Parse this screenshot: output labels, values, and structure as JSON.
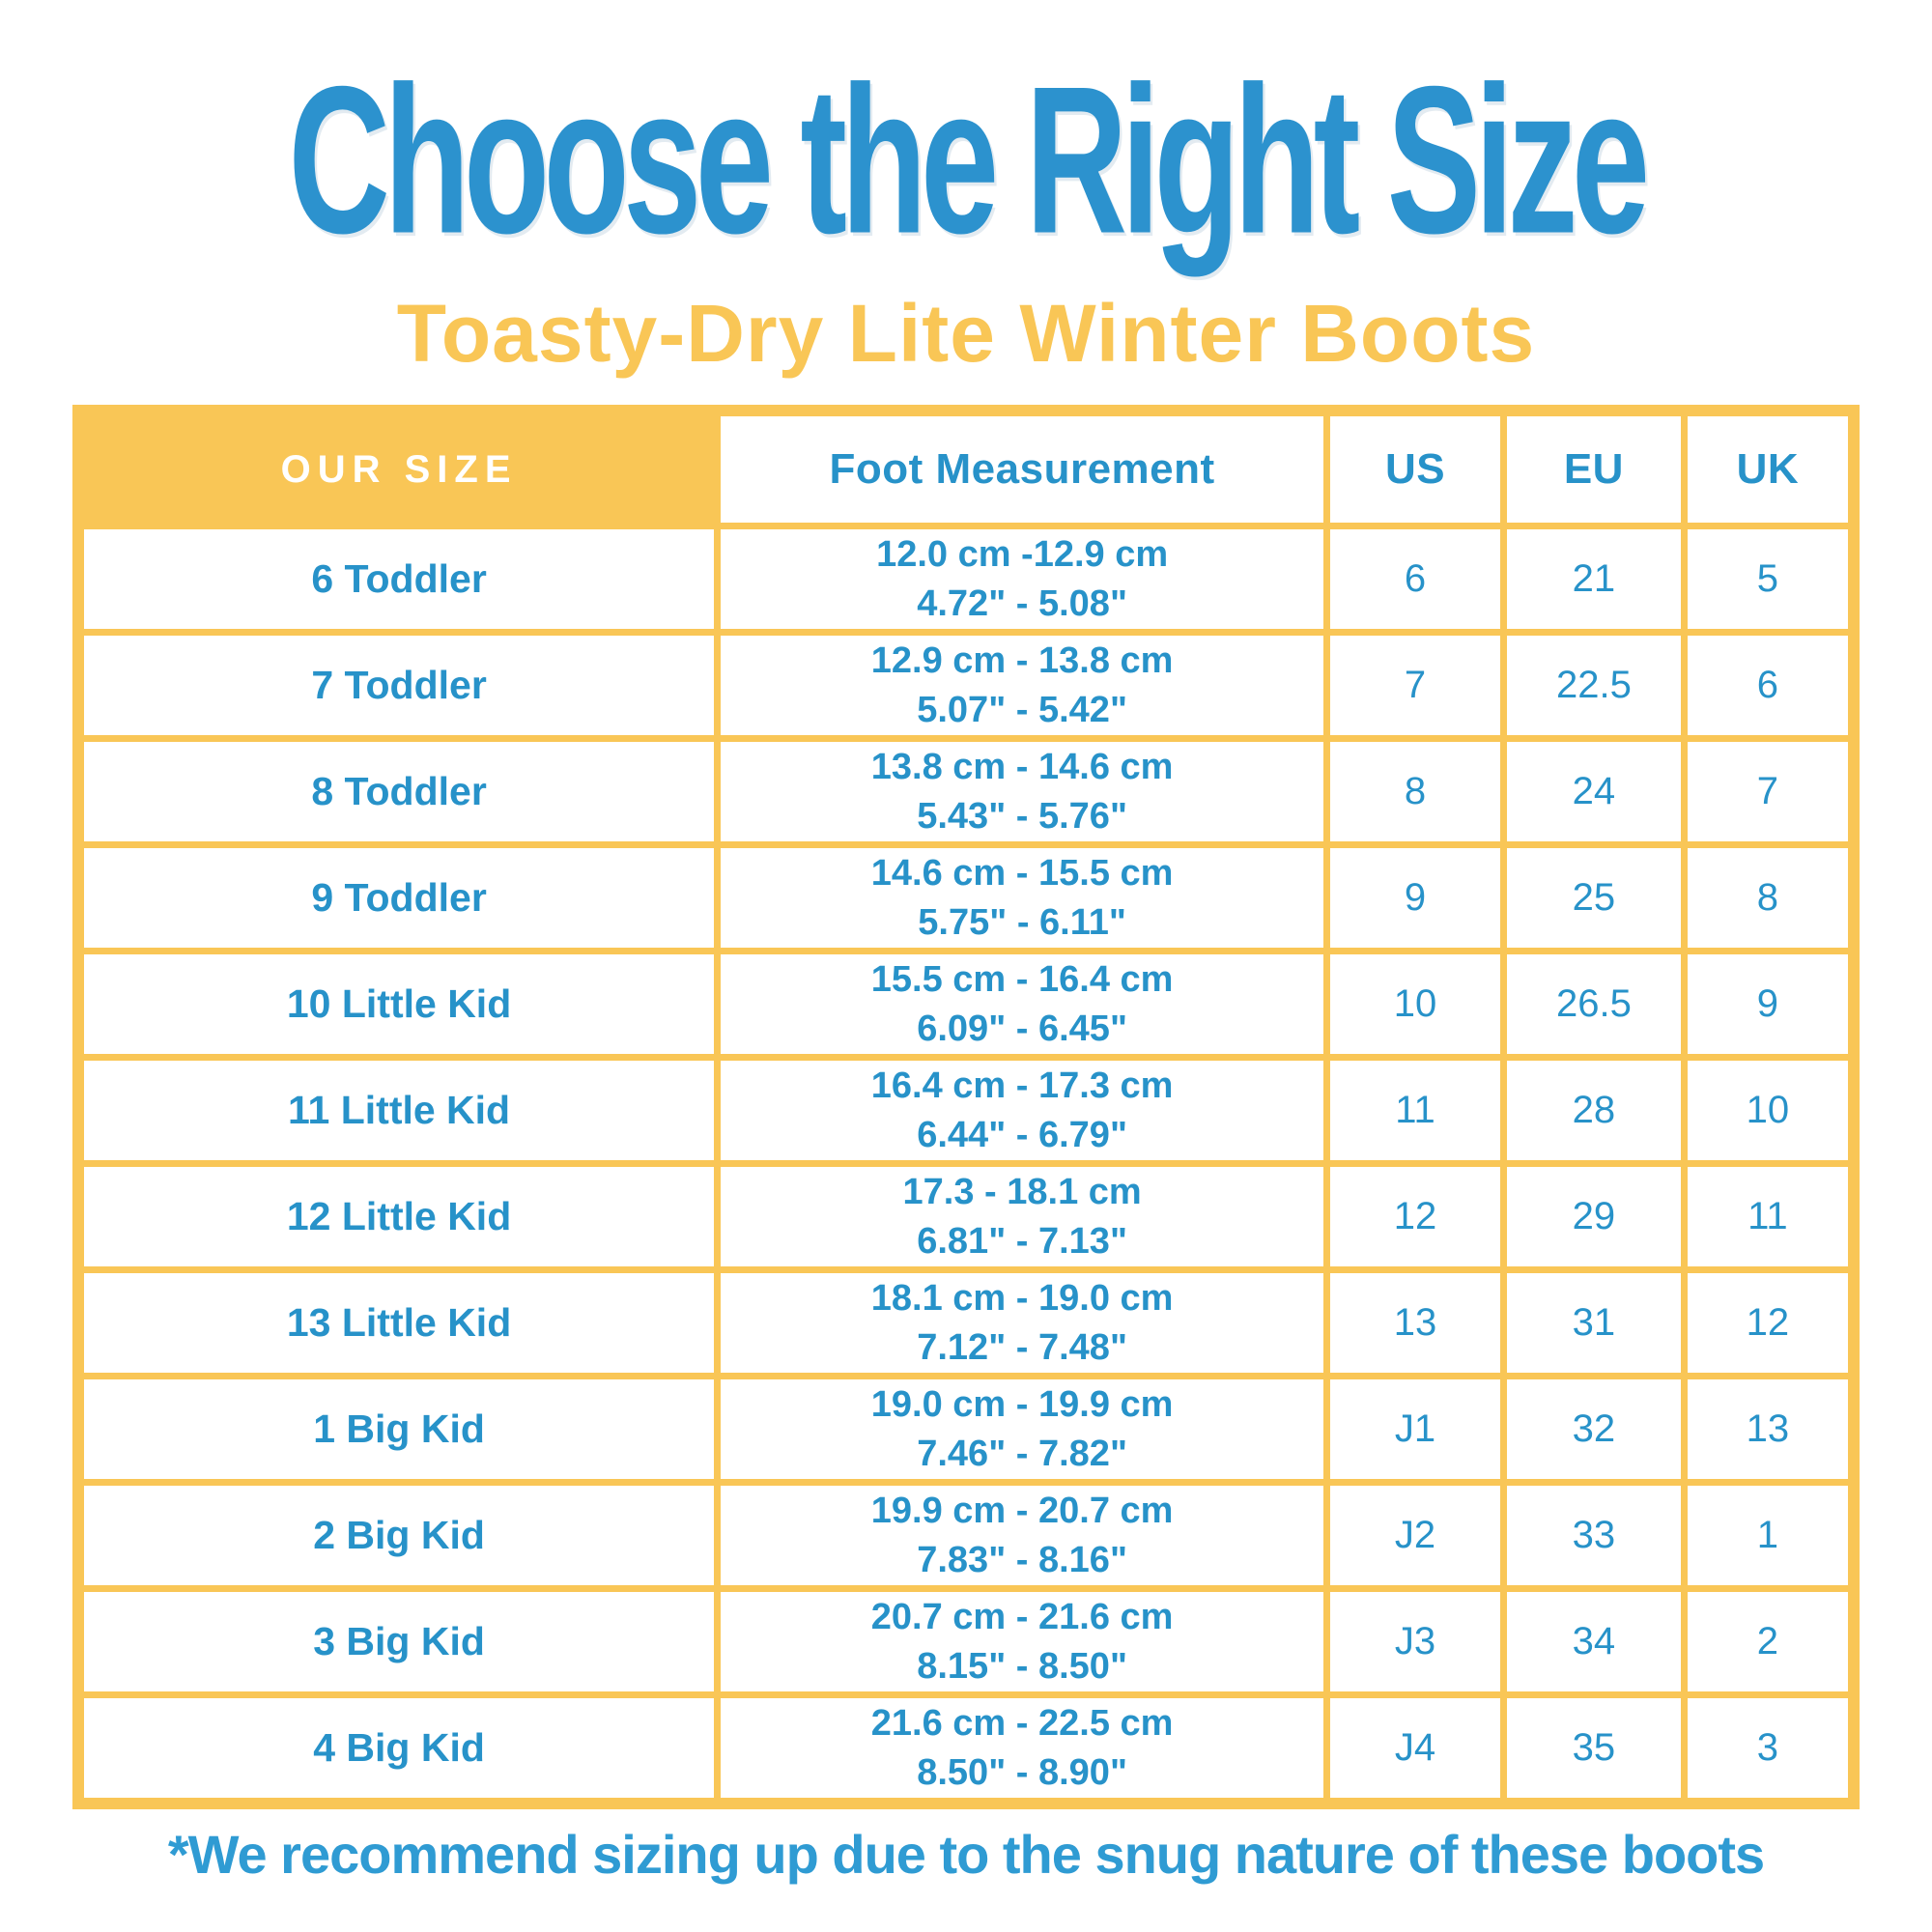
{
  "chart_data": {
    "type": "table",
    "title": "Choose the Right Size",
    "subtitle": "Toasty-Dry Lite Winter Boots",
    "columns": [
      "OUR SIZE",
      "Foot Measurement",
      "US",
      "EU",
      "UK"
    ],
    "rows": [
      {
        "size": "6 Toddler",
        "cm": "12.0 cm -12.9 cm",
        "inches": "4.72\" - 5.08\"",
        "us": "6",
        "eu": "21",
        "uk": "5"
      },
      {
        "size": "7 Toddler",
        "cm": "12.9 cm - 13.8 cm",
        "inches": "5.07\" - 5.42\"",
        "us": "7",
        "eu": "22.5",
        "uk": "6"
      },
      {
        "size": "8 Toddler",
        "cm": "13.8 cm - 14.6 cm",
        "inches": "5.43\" - 5.76\"",
        "us": "8",
        "eu": "24",
        "uk": "7"
      },
      {
        "size": "9 Toddler",
        "cm": "14.6 cm - 15.5 cm",
        "inches": "5.75\" - 6.11\"",
        "us": "9",
        "eu": "25",
        "uk": "8"
      },
      {
        "size": "10 Little Kid",
        "cm": "15.5 cm - 16.4 cm",
        "inches": "6.09\" - 6.45\"",
        "us": "10",
        "eu": "26.5",
        "uk": "9"
      },
      {
        "size": "11 Little Kid",
        "cm": "16.4 cm - 17.3 cm",
        "inches": "6.44\" - 6.79\"",
        "us": "11",
        "eu": "28",
        "uk": "10"
      },
      {
        "size": "12 Little Kid",
        "cm": "17.3 - 18.1 cm",
        "inches": "6.81\" - 7.13\"",
        "us": "12",
        "eu": "29",
        "uk": "11"
      },
      {
        "size": "13 Little Kid",
        "cm": "18.1 cm - 19.0 cm",
        "inches": "7.12\" - 7.48\"",
        "us": "13",
        "eu": "31",
        "uk": "12"
      },
      {
        "size": "1 Big Kid",
        "cm": "19.0 cm - 19.9 cm",
        "inches": "7.46\" - 7.82\"",
        "us": "J1",
        "eu": "32",
        "uk": "13"
      },
      {
        "size": "2 Big Kid",
        "cm": "19.9 cm - 20.7 cm",
        "inches": "7.83\" - 8.16\"",
        "us": "J2",
        "eu": "33",
        "uk": "1"
      },
      {
        "size": "3 Big Kid",
        "cm": "20.7 cm - 21.6 cm",
        "inches": "8.15\" - 8.50\"",
        "us": "J3",
        "eu": "34",
        "uk": "2"
      },
      {
        "size": "4 Big Kid",
        "cm": "21.6 cm - 22.5 cm",
        "inches": "8.50\" - 8.90\"",
        "us": "J4",
        "eu": "35",
        "uk": "3"
      }
    ],
    "footnote": "*We recommend sizing up due to the snug nature of these boots",
    "layout_hints": {
      "legend": "none",
      "grid": "yellow cell borders"
    },
    "colors": {
      "title_blue": "#2C92CE",
      "table_text_blue": "#2792C9",
      "accent_yellow": "#F9C656",
      "header_text_white": "#FFFFFF",
      "background": "#FFFFFF"
    }
  }
}
